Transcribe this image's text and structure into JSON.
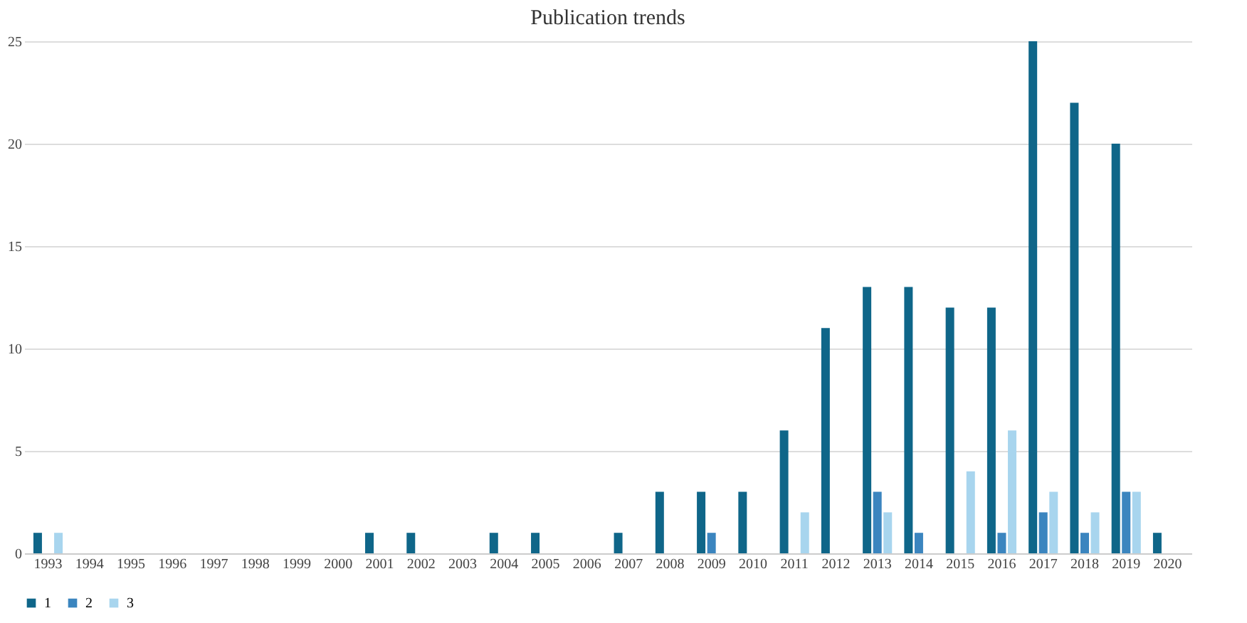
{
  "chart_data": {
    "type": "bar",
    "title": "Publication trends",
    "categories": [
      "1993",
      "1994",
      "1995",
      "1996",
      "1997",
      "1998",
      "1999",
      "2000",
      "2001",
      "2002",
      "2003",
      "2004",
      "2005",
      "2006",
      "2007",
      "2008",
      "2009",
      "2010",
      "2011",
      "2012",
      "2013",
      "2014",
      "2015",
      "2016",
      "2017",
      "2018",
      "2019",
      "2020"
    ],
    "series": [
      {
        "name": "1",
        "color": "#0f6689",
        "values": [
          1,
          0,
          0,
          0,
          0,
          0,
          0,
          0,
          1,
          1,
          0,
          1,
          1,
          0,
          1,
          3,
          3,
          3,
          6,
          11,
          13,
          13,
          12,
          12,
          25,
          22,
          20,
          1
        ]
      },
      {
        "name": "2",
        "color": "#3b85bf",
        "values": [
          0,
          0,
          0,
          0,
          0,
          0,
          0,
          0,
          0,
          0,
          0,
          0,
          0,
          0,
          0,
          0,
          1,
          0,
          0,
          0,
          3,
          1,
          0,
          1,
          2,
          1,
          3,
          0
        ]
      },
      {
        "name": "3",
        "color": "#a8d5ee",
        "values": [
          1,
          0,
          0,
          0,
          0,
          0,
          0,
          0,
          0,
          0,
          0,
          0,
          0,
          0,
          0,
          0,
          0,
          0,
          2,
          0,
          2,
          0,
          4,
          6,
          3,
          2,
          3,
          0
        ]
      }
    ],
    "ylim": [
      0,
      25
    ],
    "yticks": [
      0,
      5,
      10,
      15,
      20,
      25
    ],
    "grid": "y",
    "legend": "bottom"
  }
}
